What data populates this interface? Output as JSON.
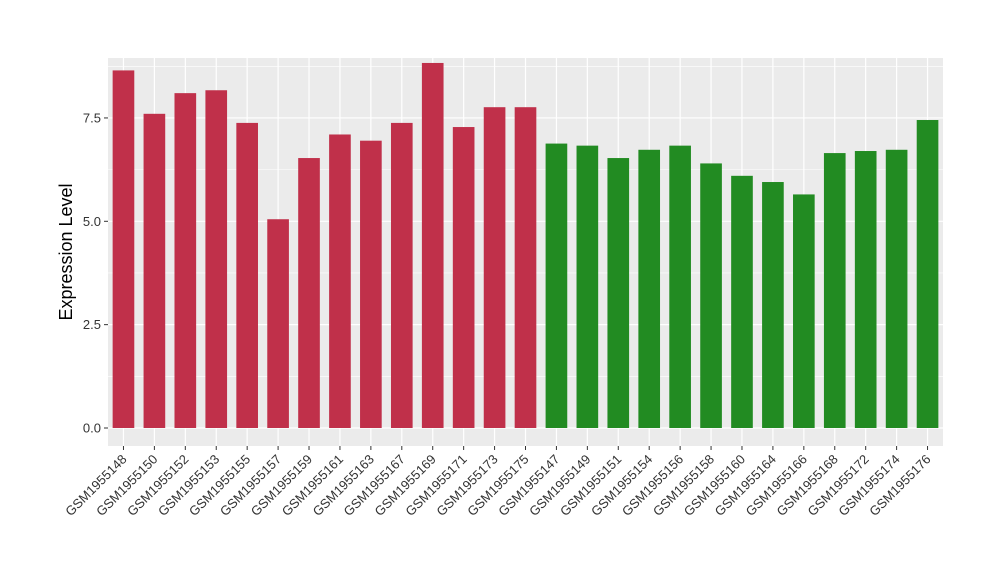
{
  "chart_data": {
    "type": "bar",
    "ylabel": "Expression Level",
    "xlabel": "",
    "ylim": [
      0,
      8.95
    ],
    "yticks": [
      0.0,
      2.5,
      5.0,
      7.5
    ],
    "ytick_labels": [
      "0.0",
      "2.5",
      "5.0",
      "7.5"
    ],
    "grid": true,
    "categories": [
      "GSM1955148",
      "GSM1955150",
      "GSM1955152",
      "GSM1955153",
      "GSM1955155",
      "GSM1955157",
      "GSM1955159",
      "GSM1955161",
      "GSM1955163",
      "GSM1955167",
      "GSM1955169",
      "GSM1955171",
      "GSM1955173",
      "GSM1955175",
      "GSM1955147",
      "GSM1955149",
      "GSM1955151",
      "GSM1955154",
      "GSM1955156",
      "GSM1955158",
      "GSM1955160",
      "GSM1955164",
      "GSM1955166",
      "GSM1955168",
      "GSM1955172",
      "GSM1955174",
      "GSM1955176"
    ],
    "values": [
      8.65,
      7.6,
      8.1,
      8.17,
      7.38,
      5.05,
      6.53,
      7.1,
      6.95,
      7.38,
      8.83,
      7.28,
      7.76,
      7.76,
      6.88,
      6.83,
      6.53,
      6.73,
      6.83,
      6.4,
      6.1,
      5.95,
      5.65,
      6.65,
      6.7,
      6.73,
      7.45
    ],
    "bar_colors": [
      "#c0304a",
      "#c0304a",
      "#c0304a",
      "#c0304a",
      "#c0304a",
      "#c0304a",
      "#c0304a",
      "#c0304a",
      "#c0304a",
      "#c0304a",
      "#c0304a",
      "#c0304a",
      "#c0304a",
      "#c0304a",
      "#228b22",
      "#228b22",
      "#228b22",
      "#228b22",
      "#228b22",
      "#228b22",
      "#228b22",
      "#228b22",
      "#228b22",
      "#228b22",
      "#228b22",
      "#228b22",
      "#228b22"
    ],
    "panel_background": "#ebebeb",
    "gridline_color": "#ffffff"
  }
}
